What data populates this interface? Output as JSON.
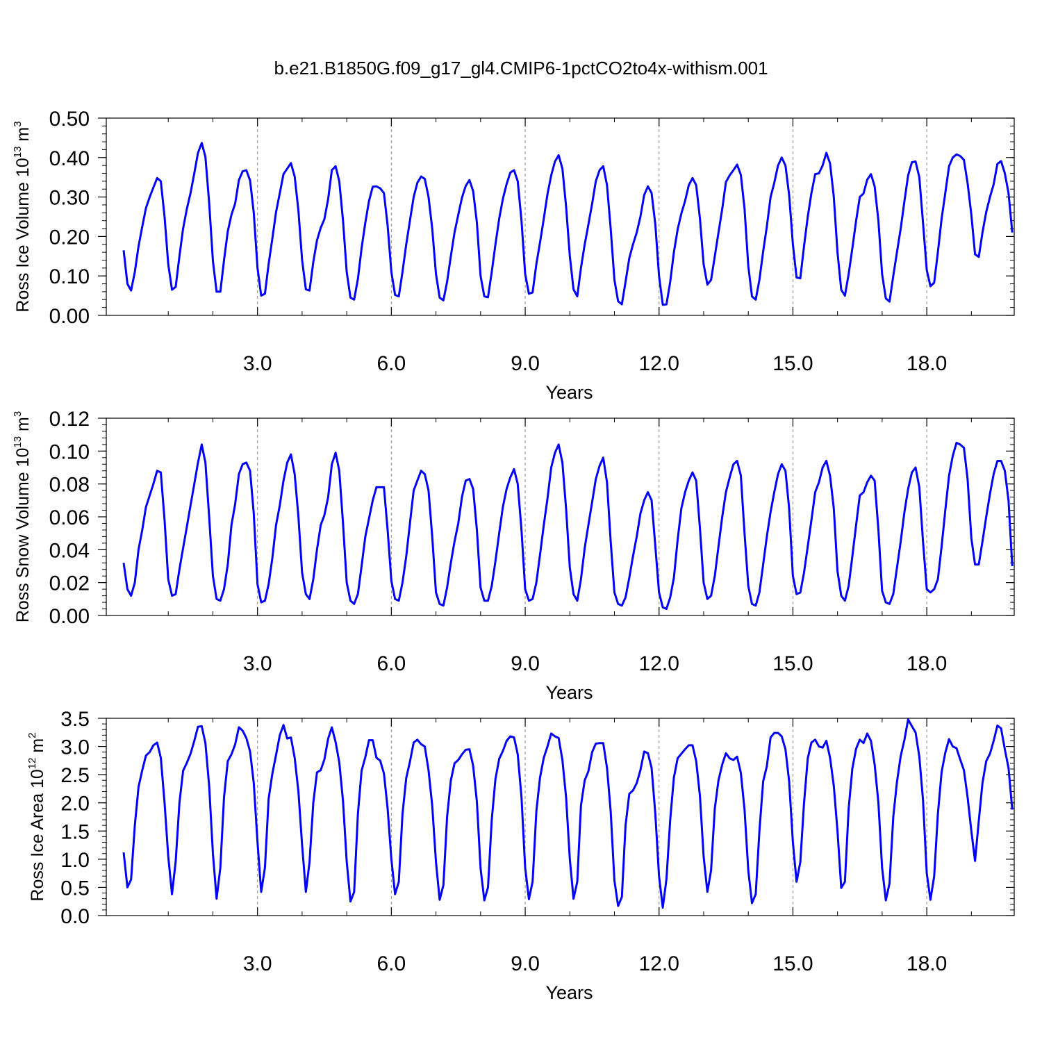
{
  "figure": {
    "title": "b.e21.B1850G.f09_g17_gl4.CMIP6-1pctCO2to4x-withism.001"
  },
  "colors": {
    "line": "#0000ff",
    "axis": "#000000",
    "grid": "#888888"
  },
  "chart_data": [
    {
      "type": "line",
      "ylabel": {
        "text": "Ross Ice Volume 10",
        "exp": "13",
        "unit": " m",
        "unit_exp": "3"
      },
      "xlabel": "Years",
      "xlim": [
        0.0,
        19.96
      ],
      "ylim": [
        0.0,
        0.5
      ],
      "x_ticks": [
        3,
        6,
        9,
        12,
        15,
        18
      ],
      "x_tick_labels": [
        "3.0",
        "6.0",
        "9.0",
        "12.0",
        "15.0",
        "18.0"
      ],
      "y_ticks": [
        0.0,
        0.1,
        0.2,
        0.3,
        0.4,
        0.5
      ],
      "y_tick_labels": [
        "0.00",
        "0.10",
        "0.20",
        "0.30",
        "0.40",
        "0.50"
      ],
      "y_minor_step": 0.02,
      "grid": "vertical dashed at major x ticks",
      "series": [
        {
          "x_start": 0.0,
          "x_step": 0.08333,
          "values": [
            0.165,
            0.08,
            0.063,
            0.11,
            0.175,
            0.225,
            0.272,
            0.3,
            0.324,
            0.348,
            0.34,
            0.25,
            0.13,
            0.065,
            0.072,
            0.15,
            0.22,
            0.27,
            0.31,
            0.36,
            0.412,
            0.437,
            0.402,
            0.285,
            0.138,
            0.06,
            0.06,
            0.14,
            0.213,
            0.255,
            0.284,
            0.343,
            0.365,
            0.368,
            0.342,
            0.26,
            0.12,
            0.05,
            0.055,
            0.13,
            0.195,
            0.262,
            0.31,
            0.358,
            0.372,
            0.386,
            0.352,
            0.265,
            0.14,
            0.066,
            0.063,
            0.135,
            0.19,
            0.222,
            0.244,
            0.295,
            0.368,
            0.378,
            0.34,
            0.24,
            0.11,
            0.045,
            0.04,
            0.092,
            0.17,
            0.235,
            0.29,
            0.326,
            0.327,
            0.322,
            0.31,
            0.228,
            0.11,
            0.052,
            0.048,
            0.11,
            0.18,
            0.24,
            0.3,
            0.336,
            0.352,
            0.346,
            0.3,
            0.22,
            0.105,
            0.045,
            0.038,
            0.085,
            0.15,
            0.21,
            0.255,
            0.298,
            0.328,
            0.343,
            0.315,
            0.235,
            0.1,
            0.048,
            0.046,
            0.11,
            0.18,
            0.245,
            0.295,
            0.333,
            0.362,
            0.368,
            0.34,
            0.24,
            0.105,
            0.055,
            0.058,
            0.13,
            0.185,
            0.245,
            0.307,
            0.355,
            0.39,
            0.406,
            0.372,
            0.276,
            0.15,
            0.066,
            0.048,
            0.12,
            0.18,
            0.23,
            0.283,
            0.34,
            0.368,
            0.378,
            0.33,
            0.22,
            0.09,
            0.036,
            0.028,
            0.085,
            0.145,
            0.18,
            0.21,
            0.25,
            0.305,
            0.327,
            0.31,
            0.23,
            0.1,
            0.027,
            0.028,
            0.085,
            0.16,
            0.218,
            0.258,
            0.29,
            0.33,
            0.348,
            0.33,
            0.245,
            0.13,
            0.078,
            0.09,
            0.15,
            0.21,
            0.27,
            0.338,
            0.355,
            0.368,
            0.382,
            0.356,
            0.27,
            0.125,
            0.048,
            0.04,
            0.09,
            0.162,
            0.225,
            0.3,
            0.336,
            0.38,
            0.4,
            0.38,
            0.305,
            0.18,
            0.096,
            0.094,
            0.175,
            0.25,
            0.31,
            0.358,
            0.36,
            0.38,
            0.412,
            0.385,
            0.3,
            0.16,
            0.065,
            0.05,
            0.105,
            0.17,
            0.24,
            0.3,
            0.309,
            0.344,
            0.358,
            0.327,
            0.24,
            0.105,
            0.043,
            0.035,
            0.1,
            0.16,
            0.22,
            0.29,
            0.355,
            0.388,
            0.39,
            0.35,
            0.235,
            0.115,
            0.074,
            0.083,
            0.16,
            0.245,
            0.31,
            0.378,
            0.4,
            0.408,
            0.404,
            0.394,
            0.335,
            0.255,
            0.155,
            0.148,
            0.21,
            0.262,
            0.3,
            0.332,
            0.384,
            0.391,
            0.36,
            0.31,
            0.21
          ]
        }
      ]
    },
    {
      "type": "line",
      "ylabel": {
        "text": "Ross Snow Volume 10",
        "exp": "13",
        "unit": " m",
        "unit_exp": "3"
      },
      "xlabel": "Years",
      "xlim": [
        0.0,
        19.96
      ],
      "ylim": [
        0.0,
        0.12
      ],
      "x_ticks": [
        3,
        6,
        9,
        12,
        15,
        18
      ],
      "x_tick_labels": [
        "3.0",
        "6.0",
        "9.0",
        "12.0",
        "15.0",
        "18.0"
      ],
      "y_ticks": [
        0.0,
        0.02,
        0.04,
        0.06,
        0.08,
        0.1,
        0.12
      ],
      "y_tick_labels": [
        "0.00",
        "0.02",
        "0.04",
        "0.06",
        "0.08",
        "0.10",
        "0.12"
      ],
      "y_minor_step": 0.004,
      "grid": "vertical dashed at major x ticks",
      "series": [
        {
          "x_start": 0.0,
          "x_step": 0.08333,
          "values": [
            0.032,
            0.016,
            0.012,
            0.02,
            0.04,
            0.052,
            0.066,
            0.073,
            0.08,
            0.088,
            0.087,
            0.058,
            0.022,
            0.012,
            0.013,
            0.028,
            0.041,
            0.054,
            0.067,
            0.08,
            0.093,
            0.104,
            0.093,
            0.06,
            0.024,
            0.01,
            0.009,
            0.016,
            0.031,
            0.055,
            0.068,
            0.086,
            0.092,
            0.093,
            0.088,
            0.062,
            0.019,
            0.008,
            0.009,
            0.019,
            0.035,
            0.055,
            0.067,
            0.082,
            0.093,
            0.098,
            0.086,
            0.06,
            0.026,
            0.013,
            0.01,
            0.022,
            0.04,
            0.055,
            0.061,
            0.072,
            0.092,
            0.099,
            0.088,
            0.056,
            0.02,
            0.009,
            0.007,
            0.013,
            0.03,
            0.048,
            0.059,
            0.07,
            0.078,
            0.078,
            0.078,
            0.052,
            0.021,
            0.01,
            0.009,
            0.02,
            0.036,
            0.056,
            0.076,
            0.082,
            0.088,
            0.086,
            0.076,
            0.048,
            0.014,
            0.007,
            0.006,
            0.017,
            0.032,
            0.045,
            0.056,
            0.072,
            0.082,
            0.083,
            0.077,
            0.052,
            0.017,
            0.009,
            0.009,
            0.018,
            0.033,
            0.05,
            0.066,
            0.077,
            0.084,
            0.089,
            0.08,
            0.052,
            0.016,
            0.009,
            0.01,
            0.02,
            0.037,
            0.055,
            0.071,
            0.09,
            0.099,
            0.104,
            0.093,
            0.065,
            0.029,
            0.013,
            0.009,
            0.022,
            0.041,
            0.055,
            0.069,
            0.083,
            0.091,
            0.096,
            0.081,
            0.045,
            0.014,
            0.007,
            0.006,
            0.011,
            0.023,
            0.036,
            0.048,
            0.062,
            0.07,
            0.075,
            0.07,
            0.042,
            0.014,
            0.005,
            0.004,
            0.011,
            0.023,
            0.046,
            0.065,
            0.075,
            0.082,
            0.087,
            0.082,
            0.053,
            0.02,
            0.01,
            0.012,
            0.024,
            0.042,
            0.06,
            0.075,
            0.084,
            0.092,
            0.094,
            0.085,
            0.05,
            0.018,
            0.007,
            0.006,
            0.014,
            0.031,
            0.048,
            0.063,
            0.075,
            0.086,
            0.092,
            0.088,
            0.065,
            0.024,
            0.013,
            0.014,
            0.026,
            0.042,
            0.058,
            0.075,
            0.081,
            0.09,
            0.094,
            0.085,
            0.065,
            0.027,
            0.012,
            0.009,
            0.018,
            0.036,
            0.055,
            0.073,
            0.075,
            0.081,
            0.085,
            0.082,
            0.052,
            0.015,
            0.008,
            0.007,
            0.013,
            0.029,
            0.045,
            0.063,
            0.077,
            0.087,
            0.09,
            0.078,
            0.045,
            0.016,
            0.014,
            0.016,
            0.022,
            0.042,
            0.064,
            0.085,
            0.097,
            0.105,
            0.104,
            0.102,
            0.083,
            0.047,
            0.031,
            0.031,
            0.045,
            0.06,
            0.074,
            0.086,
            0.094,
            0.094,
            0.088,
            0.07,
            0.03
          ]
        }
      ]
    },
    {
      "type": "line",
      "ylabel": {
        "text": "Ross Ice Area 10",
        "exp": "12",
        "unit": " m",
        "unit_exp": "2"
      },
      "xlabel": "Years",
      "xlim": [
        0.0,
        19.96
      ],
      "ylim": [
        0.0,
        3.5
      ],
      "x_ticks": [
        3,
        6,
        9,
        12,
        15,
        18
      ],
      "x_tick_labels": [
        "3.0",
        "6.0",
        "9.0",
        "12.0",
        "15.0",
        "18.0"
      ],
      "y_ticks": [
        0.0,
        0.5,
        1.0,
        1.5,
        2.0,
        2.5,
        3.0,
        3.5
      ],
      "y_tick_labels": [
        "0.0",
        "0.5",
        "1.0",
        "1.5",
        "2.0",
        "2.5",
        "3.0",
        "3.5"
      ],
      "y_minor_step": 0.1,
      "grid": "vertical dashed at major x ticks",
      "series": [
        {
          "x_start": 0.0,
          "x_step": 0.08333,
          "values": [
            1.12,
            0.5,
            0.64,
            1.6,
            2.28,
            2.58,
            2.84,
            2.9,
            3.02,
            3.07,
            2.8,
            2.0,
            1.05,
            0.38,
            0.96,
            2.0,
            2.57,
            2.71,
            2.87,
            3.1,
            3.35,
            3.36,
            3.06,
            2.3,
            1.1,
            0.3,
            0.85,
            2.1,
            2.74,
            2.86,
            3.04,
            3.34,
            3.28,
            3.15,
            2.91,
            2.35,
            1.3,
            0.42,
            0.85,
            2.07,
            2.52,
            2.85,
            3.2,
            3.38,
            3.14,
            3.16,
            2.8,
            2.2,
            1.25,
            0.42,
            0.95,
            2.0,
            2.54,
            2.58,
            2.77,
            3.14,
            3.34,
            3.08,
            2.72,
            2.03,
            0.96,
            0.25,
            0.42,
            1.8,
            2.57,
            2.81,
            3.11,
            3.11,
            2.8,
            2.75,
            2.52,
            1.9,
            1.0,
            0.38,
            0.6,
            1.8,
            2.44,
            2.73,
            3.07,
            3.12,
            3.04,
            3.0,
            2.58,
            1.95,
            0.95,
            0.28,
            0.54,
            1.75,
            2.4,
            2.7,
            2.76,
            2.86,
            2.94,
            2.95,
            2.66,
            2.02,
            0.84,
            0.27,
            0.5,
            1.7,
            2.42,
            2.78,
            2.92,
            3.1,
            3.18,
            3.16,
            2.86,
            2.1,
            0.85,
            0.29,
            0.6,
            1.85,
            2.45,
            2.8,
            3.0,
            3.23,
            3.18,
            3.15,
            2.76,
            2.1,
            1.0,
            0.3,
            0.6,
            1.95,
            2.4,
            2.56,
            2.9,
            3.05,
            3.06,
            3.06,
            2.62,
            1.85,
            0.62,
            0.17,
            0.33,
            1.6,
            2.16,
            2.22,
            2.35,
            2.58,
            2.91,
            2.88,
            2.62,
            1.8,
            0.7,
            0.14,
            0.65,
            1.7,
            2.45,
            2.79,
            2.87,
            2.95,
            3.02,
            3.02,
            2.74,
            2.12,
            1.05,
            0.42,
            0.8,
            1.9,
            2.4,
            2.68,
            2.88,
            2.79,
            2.76,
            2.82,
            2.53,
            1.88,
            0.8,
            0.22,
            0.38,
            1.5,
            2.38,
            2.65,
            3.16,
            3.24,
            3.24,
            3.18,
            2.95,
            2.38,
            1.3,
            0.6,
            0.95,
            1.99,
            2.79,
            3.07,
            3.12,
            3.0,
            2.98,
            3.1,
            2.8,
            2.3,
            1.5,
            0.49,
            0.6,
            1.9,
            2.61,
            2.96,
            3.12,
            3.06,
            3.23,
            3.1,
            2.68,
            2.0,
            0.85,
            0.27,
            0.57,
            1.75,
            2.37,
            2.83,
            3.12,
            3.48,
            3.36,
            3.25,
            2.82,
            2.05,
            0.75,
            0.28,
            0.7,
            1.8,
            2.55,
            2.89,
            3.13,
            3.0,
            2.97,
            2.77,
            2.58,
            2.1,
            1.5,
            0.97,
            1.68,
            2.35,
            2.74,
            2.87,
            3.1,
            3.37,
            3.32,
            2.95,
            2.62,
            1.88
          ]
        }
      ]
    }
  ]
}
